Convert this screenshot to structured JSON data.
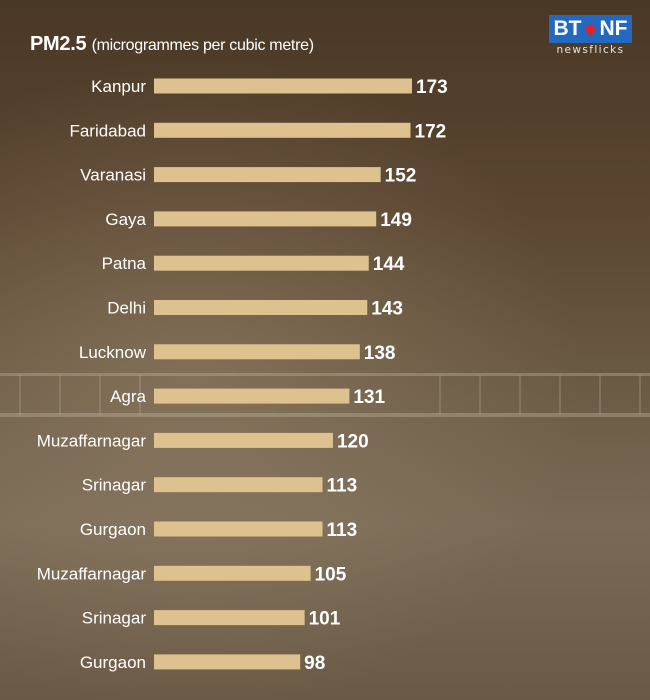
{
  "header": {
    "title": "PM2.5",
    "unit": "(microgrammes per cubic metre)"
  },
  "logo": {
    "left": "BT",
    "right": "NF",
    "subtitle": "newsflicks",
    "color": "#2469c0",
    "accent": "#e1222b"
  },
  "chart_data": {
    "type": "bar",
    "orientation": "horizontal",
    "title": "PM2.5",
    "subtitle": "(microgrammes per cubic metre)",
    "categories": [
      "Kanpur",
      "Faridabad",
      "Varanasi",
      "Gaya",
      "Patna",
      "Delhi",
      "Lucknow",
      "Agra",
      "Muzaffarnagar",
      "Srinagar",
      "Gurgaon",
      "Muzaffarnagar",
      "Srinagar",
      "Gurgaon"
    ],
    "values": [
      173,
      172,
      152,
      149,
      144,
      143,
      138,
      131,
      120,
      113,
      113,
      105,
      101,
      98
    ],
    "bar_color": "#ddc28f",
    "xlim": [
      0,
      173
    ],
    "grid": false,
    "legend": "none"
  }
}
